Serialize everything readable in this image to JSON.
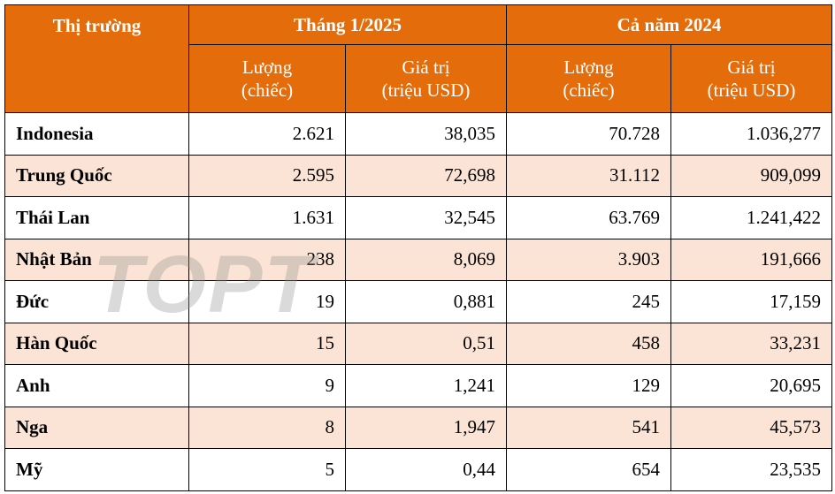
{
  "header": {
    "market": "Thị trường",
    "groups": [
      "Tháng 1/2025",
      "Cả năm 2024"
    ],
    "subheaders": [
      "Lượng\n(chiếc)",
      "Giá trị\n(triệu USD)",
      "Lượng\n(chiếc)",
      "Giá trị\n(triệu USD)"
    ]
  },
  "table": {
    "rows": [
      [
        "Indonesia",
        "2.621",
        "38,035",
        "70.728",
        "1.036,277"
      ],
      [
        "Trung Quốc",
        "2.595",
        "72,698",
        "31.112",
        "909,099"
      ],
      [
        "Thái Lan",
        "1.631",
        "32,545",
        "63.769",
        "1.241,422"
      ],
      [
        "Nhật Bản",
        "238",
        "8,069",
        "3.903",
        "191,666"
      ],
      [
        "Đức",
        "19",
        "0,881",
        "245",
        "17,159"
      ],
      [
        "Hàn Quốc",
        "15",
        "0,51",
        "458",
        "33,231"
      ],
      [
        "Anh",
        "9",
        "1,241",
        "129",
        "20,695"
      ],
      [
        "Nga",
        "8",
        "1,947",
        "541",
        "45,573"
      ],
      [
        "Mỹ",
        "5",
        "0,44",
        "654",
        "23,535"
      ]
    ]
  },
  "watermark": "TOPT"
}
